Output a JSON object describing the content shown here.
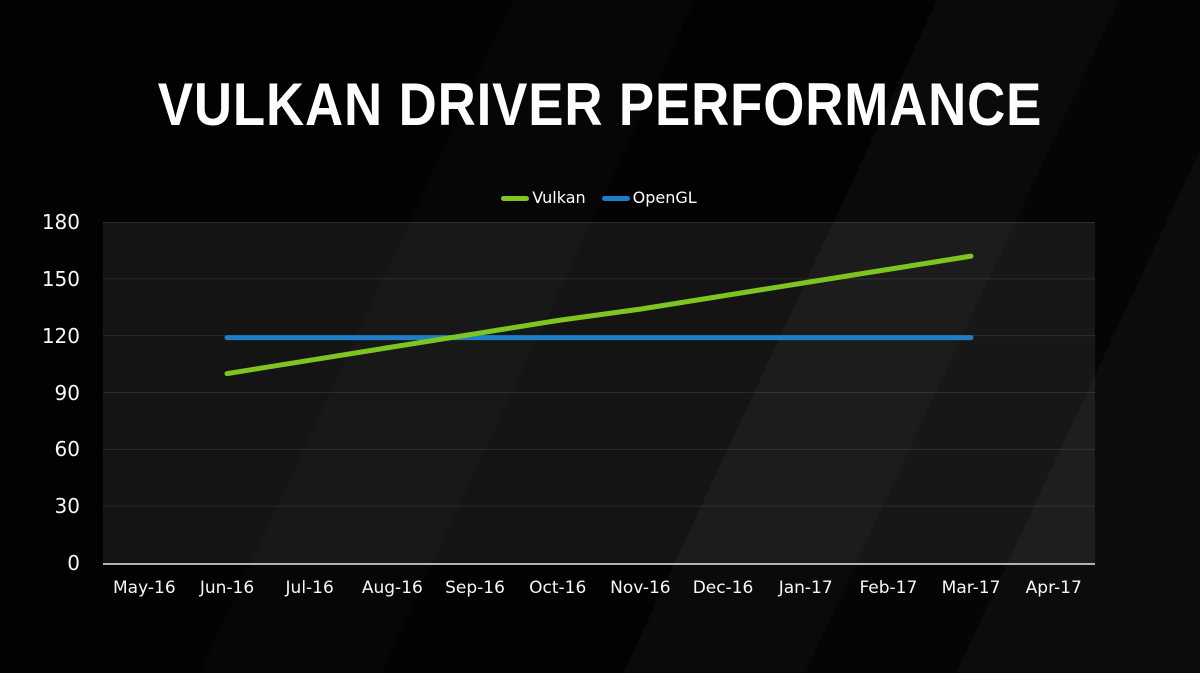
{
  "chart_data": {
    "type": "line",
    "title": "VULKAN DRIVER PERFORMANCE",
    "categories": [
      "May-16",
      "Jun-16",
      "Jul-16",
      "Aug-16",
      "Sep-16",
      "Oct-16",
      "Nov-16",
      "Dec-16",
      "Jan-17",
      "Feb-17",
      "Mar-17",
      "Apr-17"
    ],
    "series": [
      {
        "name": "Vulkan",
        "color": "#7dc521",
        "values": [
          null,
          100,
          107,
          114,
          121,
          128,
          134,
          141,
          148,
          155,
          162,
          null
        ]
      },
      {
        "name": "OpenGL",
        "color": "#1e7ec6",
        "values": [
          null,
          119,
          119,
          119,
          119,
          119,
          119,
          119,
          119,
          119,
          119,
          null
        ]
      }
    ],
    "xlabel": "",
    "ylabel": "",
    "ylim": [
      0,
      180
    ],
    "yticks": [
      0,
      30,
      60,
      90,
      120,
      150,
      180
    ],
    "grid": "horizontal",
    "legend_position": "top-center"
  },
  "style_colors": {
    "background": "#020202",
    "text": "#f7f7f7",
    "axis_line": "#b2b2b2"
  }
}
